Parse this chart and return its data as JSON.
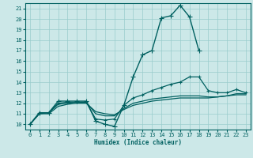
{
  "xlabel": "Humidex (Indice chaleur)",
  "bg_color": "#cce8e8",
  "grid_color": "#99cccc",
  "line_color": "#006060",
  "xlim": [
    -0.5,
    23.5
  ],
  "ylim": [
    9.5,
    21.5
  ],
  "xticks": [
    0,
    1,
    2,
    3,
    4,
    5,
    6,
    7,
    8,
    9,
    10,
    11,
    12,
    13,
    14,
    15,
    16,
    17,
    18,
    19,
    20,
    21,
    22,
    23
  ],
  "yticks": [
    10,
    11,
    12,
    13,
    14,
    15,
    16,
    17,
    18,
    19,
    20,
    21
  ],
  "series": [
    {
      "x": [
        0,
        1,
        2,
        3,
        4,
        5,
        6,
        7,
        8,
        9,
        10,
        11,
        12,
        13,
        14,
        15,
        16,
        17,
        18
      ],
      "y": [
        10.0,
        11.1,
        11.1,
        12.2,
        12.2,
        12.2,
        12.2,
        10.3,
        10.0,
        9.8,
        11.8,
        14.5,
        16.6,
        17.0,
        20.1,
        20.3,
        21.3,
        20.2,
        17.0
      ],
      "marker": "+",
      "markersize": 4,
      "linewidth": 1.0
    },
    {
      "x": [
        0,
        1,
        2,
        3,
        4,
        5,
        6,
        7,
        8,
        9,
        10,
        11,
        12,
        13,
        14,
        15,
        16,
        17,
        18,
        19,
        20,
        21,
        22,
        23
      ],
      "y": [
        10.0,
        11.1,
        11.1,
        12.0,
        12.1,
        12.1,
        12.1,
        10.5,
        10.4,
        10.5,
        11.8,
        12.5,
        12.8,
        13.2,
        13.5,
        13.8,
        14.0,
        14.5,
        14.5,
        13.2,
        13.0,
        13.0,
        13.3,
        13.0
      ],
      "marker": "+",
      "markersize": 3,
      "linewidth": 0.9
    },
    {
      "x": [
        0,
        1,
        2,
        3,
        4,
        5,
        6,
        7,
        8,
        9,
        10,
        11,
        12,
        13,
        14,
        15,
        16,
        17,
        18,
        19,
        20,
        21,
        22,
        23
      ],
      "y": [
        10.0,
        11.0,
        11.1,
        11.9,
        12.0,
        12.1,
        12.1,
        11.0,
        10.8,
        10.8,
        11.5,
        12.0,
        12.2,
        12.4,
        12.5,
        12.6,
        12.7,
        12.7,
        12.7,
        12.6,
        12.6,
        12.7,
        12.9,
        12.9
      ],
      "marker": null,
      "markersize": 0,
      "linewidth": 0.9
    },
    {
      "x": [
        0,
        1,
        2,
        3,
        4,
        5,
        6,
        7,
        8,
        9,
        10,
        11,
        12,
        13,
        14,
        15,
        16,
        17,
        18,
        19,
        20,
        21,
        22,
        23
      ],
      "y": [
        10.0,
        11.0,
        11.0,
        11.7,
        11.9,
        12.0,
        12.0,
        11.2,
        11.0,
        10.9,
        11.4,
        11.8,
        12.0,
        12.2,
        12.3,
        12.4,
        12.5,
        12.5,
        12.5,
        12.5,
        12.6,
        12.7,
        12.8,
        12.8
      ],
      "marker": null,
      "markersize": 0,
      "linewidth": 0.9
    }
  ]
}
